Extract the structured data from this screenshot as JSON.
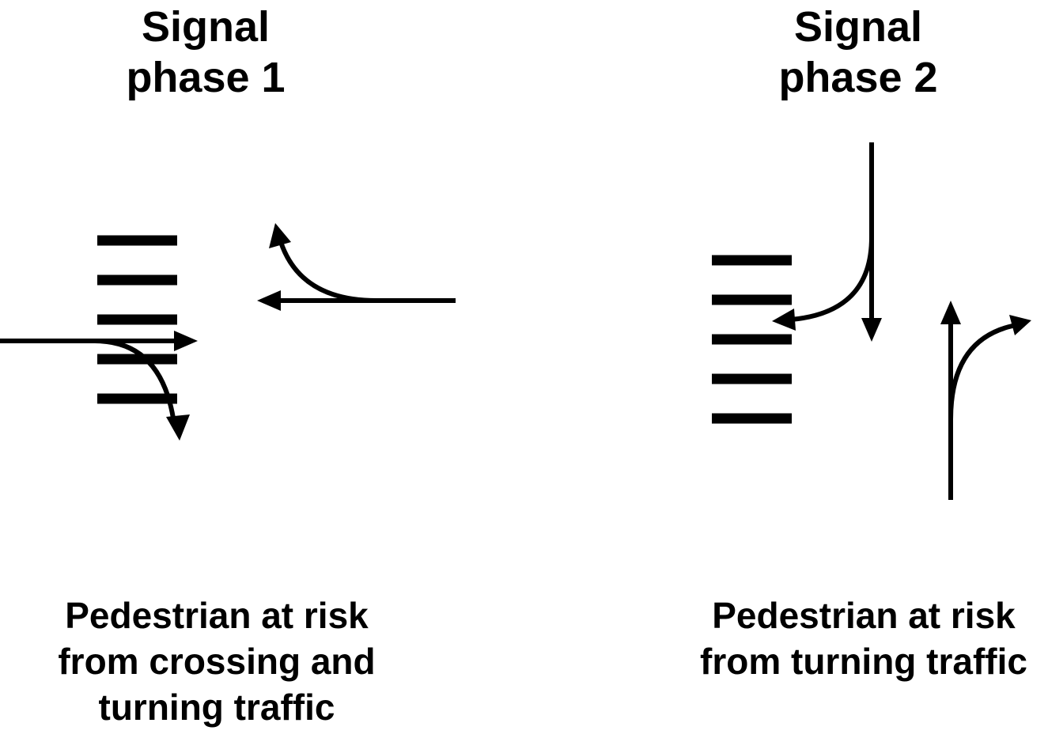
{
  "phases": [
    {
      "title_line1": "Signal",
      "title_line2": "phase 1",
      "caption_lines": [
        "Pedestrian at risk",
        "from crossing and",
        "turning traffic"
      ]
    },
    {
      "title_line1": "Signal",
      "title_line2": "phase 2",
      "caption_lines": [
        "Pedestrian at risk",
        "from turning traffic"
      ]
    }
  ],
  "colors": {
    "ink": "#000000",
    "background": "#ffffff"
  }
}
